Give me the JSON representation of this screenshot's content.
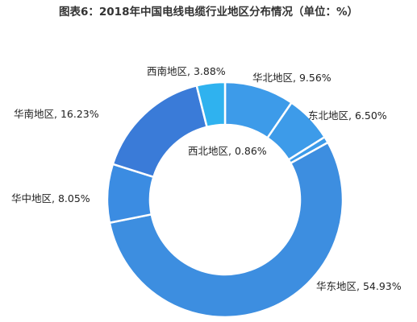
{
  "chart_data": {
    "type": "pie",
    "title": "图表6：2018年中国电线电缆行业地区分布情况（单位：%）",
    "slices": [
      {
        "label": "华北地区",
        "value": 9.56,
        "value_label": "9.56%",
        "color": "#3d9be9"
      },
      {
        "label": "东北地区",
        "value": 6.5,
        "value_label": "6.50%",
        "color": "#3d9be9"
      },
      {
        "label": "西北地区",
        "value": 0.86,
        "value_label": "0.86%",
        "color": "#3d9be9"
      },
      {
        "label": "华东地区",
        "value": 54.93,
        "value_label": "54.93%",
        "color": "#3d8ee0"
      },
      {
        "label": "华中地区",
        "value": 8.05,
        "value_label": "8.05%",
        "color": "#3b8ce2"
      },
      {
        "label": "华南地区",
        "value": 16.23,
        "value_label": "16.23%",
        "color": "#3a7bd8"
      },
      {
        "label": "西南地区",
        "value": 3.88,
        "value_label": "3.88%",
        "color": "#2fb2ef"
      }
    ],
    "colors": {
      "slice_border": "#ffffff",
      "background": "#ffffff",
      "text": "#222222"
    }
  }
}
